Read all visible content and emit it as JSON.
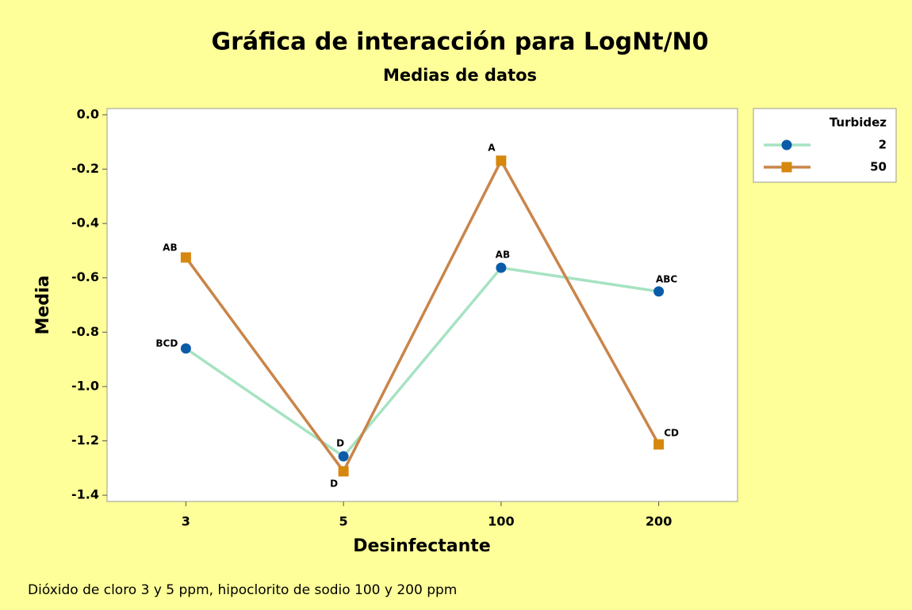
{
  "chart_data": {
    "type": "line",
    "title": "Gráfica de interacción para LogNt/N0",
    "subtitle": "Medias de datos",
    "xlabel": "Desinfectante",
    "ylabel": "Media",
    "legend_title": "Turbidez",
    "legend_position": "right",
    "footnote": "Dióxido de cloro 3 y 5 ppm, hipoclorito de sodio 100 y 200 ppm",
    "categories": [
      "3",
      "5",
      "100",
      "200"
    ],
    "ylim": [
      -1.423,
      0.023
    ],
    "yticks": [
      {
        "value": 0,
        "label": "0.0"
      },
      -0.2,
      -0.4,
      -0.6,
      -0.8,
      {
        "value": -1,
        "label": "-1.0"
      },
      -1.2,
      -1.4
    ],
    "series": [
      {
        "name": "2",
        "color": "#a6e3c2",
        "marker_color": "#0a5ca8",
        "marker": "circle",
        "values": [
          -0.86,
          -1.257,
          -0.563,
          -0.65
        ],
        "point_labels": [
          "BCD",
          "D",
          "AB",
          "ABC"
        ]
      },
      {
        "name": "50",
        "color": "#c98549",
        "marker_color": "#d6870e",
        "marker": "square",
        "values": [
          -0.525,
          -1.312,
          -0.169,
          -1.213
        ],
        "point_labels": [
          "AB",
          "D",
          "A",
          "CD"
        ]
      }
    ]
  }
}
